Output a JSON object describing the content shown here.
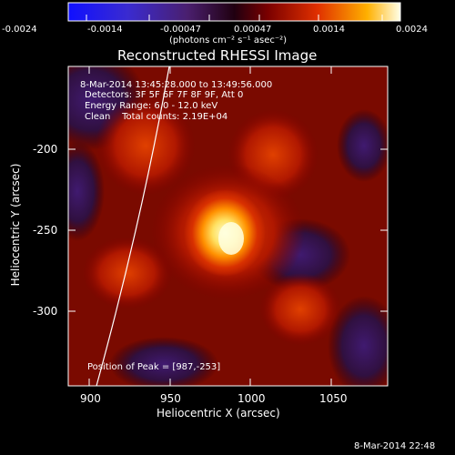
{
  "colorbar": {
    "ticks": [
      "-0.0024",
      "-0.0014",
      "-0.00047",
      "0.00047",
      "0.0014",
      "0.0024"
    ],
    "units": "(photons cm⁻² s⁻¹ asec⁻²)"
  },
  "title": "Reconstructed RHESSI Image",
  "overlay": {
    "time": "8-Mar-2014 13:45:28.000 to 13:49:56.000",
    "detectors": "Detectors: 3F 5F 6F 7F 8F 9F, Att 0",
    "energy": "Energy Range: 6.0 - 12.0 keV",
    "clean": "Clean    Total counts: 2.19E+04",
    "peak": "Position of Peak = [987,-253]"
  },
  "axes": {
    "xlabel": "Heliocentric X (arcsec)",
    "ylabel": "Heliocentric Y (arcsec)",
    "x_ticks": [
      "900",
      "950",
      "1000",
      "1050"
    ],
    "y_ticks": [
      "-200",
      "-250",
      "-300"
    ]
  },
  "timestamp": "8-Mar-2014 22:48",
  "colors": {
    "background": "#000000",
    "text": "#ffffff"
  }
}
